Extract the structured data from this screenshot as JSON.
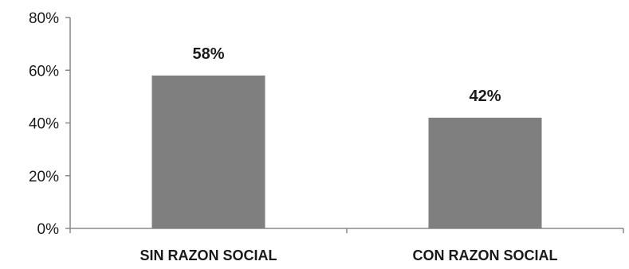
{
  "chart_data": {
    "type": "bar",
    "categories": [
      "SIN RAZON SOCIAL",
      "CON RAZON SOCIAL"
    ],
    "values": [
      58,
      42
    ],
    "data_labels": [
      "58%",
      "42%"
    ],
    "y_ticks": [
      0,
      20,
      40,
      60,
      80
    ],
    "y_tick_labels": [
      "0%",
      "20%",
      "40%",
      "60%",
      "80%"
    ],
    "ylim": [
      0,
      80
    ],
    "grid": false,
    "legend": "none",
    "bar_color": "#7f7f7f"
  }
}
